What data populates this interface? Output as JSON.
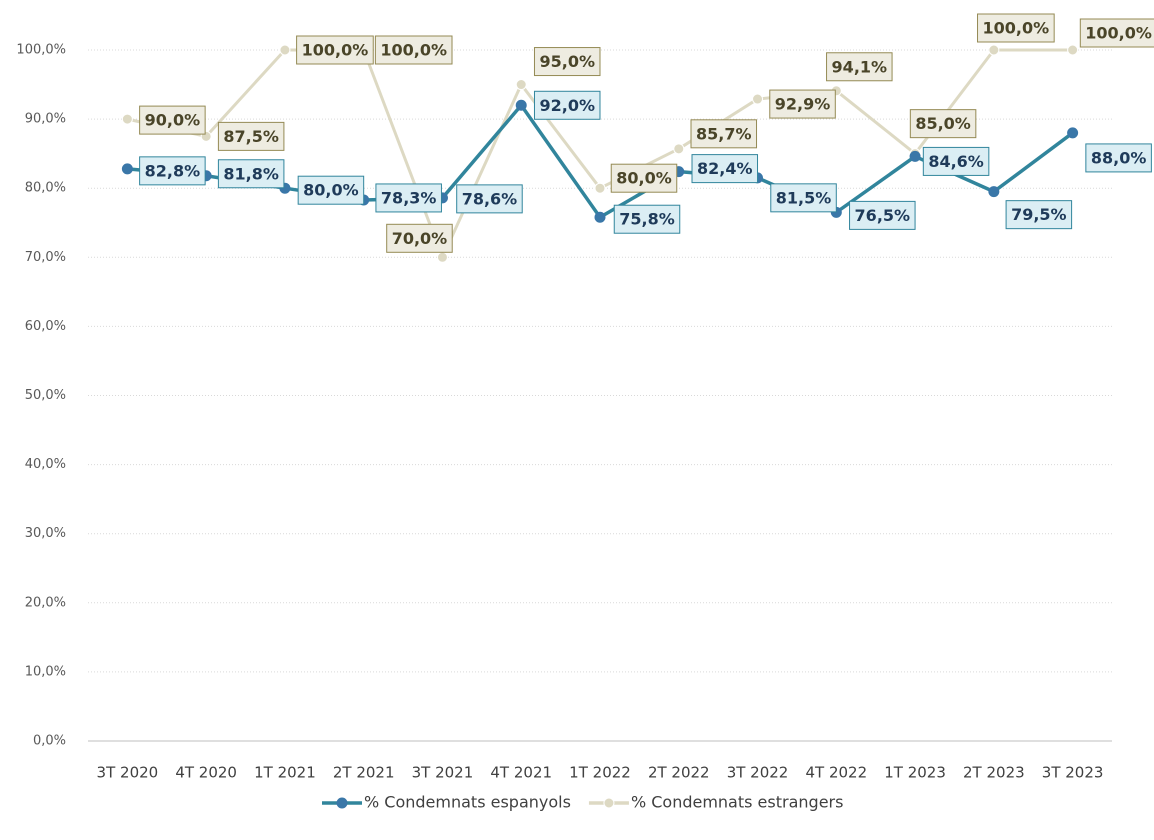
{
  "chart_data": {
    "type": "line",
    "categories": [
      "3T 2020",
      "4T 2020",
      "1T 2021",
      "2T 2021",
      "3T 2021",
      "4T 2021",
      "1T 2022",
      "2T 2022",
      "3T 2022",
      "4T 2022",
      "1T 2023",
      "2T 2023",
      "3T 2023"
    ],
    "series": [
      {
        "name": "% Condemnats espanyols",
        "color": "#31859c",
        "values": [
          82.8,
          81.8,
          80.0,
          78.3,
          78.6,
          92.0,
          75.8,
          82.4,
          81.5,
          76.5,
          84.6,
          79.5,
          88.0
        ],
        "value_labels": [
          "82,8%",
          "81,8%",
          "80,0%",
          "78,3%",
          "78,6%",
          "92,0%",
          "75,8%",
          "82,4%",
          "81,5%",
          "76,5%",
          "84,6%",
          "79,5%",
          "88,0%"
        ]
      },
      {
        "name": "% Condemnats estrangers",
        "color": "#ddd9c3",
        "values": [
          90.0,
          87.5,
          100.0,
          100.0,
          70.0,
          95.0,
          80.0,
          85.7,
          92.9,
          94.1,
          85.0,
          100.0,
          100.0
        ],
        "value_labels": [
          "90,0%",
          "87,5%",
          "100,0%",
          "100,0%",
          "70,0%",
          "95,0%",
          "80,0%",
          "85,7%",
          "92,9%",
          "94,1%",
          "85,0%",
          "100,0%",
          "100,0%"
        ]
      }
    ],
    "ylim": [
      0,
      100
    ],
    "yticks": [
      {
        "value": 0,
        "label": "0,0%"
      },
      {
        "value": 10,
        "label": "10,0%"
      },
      {
        "value": 20,
        "label": "20,0%"
      },
      {
        "value": 30,
        "label": "30,0%"
      },
      {
        "value": 40,
        "label": "40,0%"
      },
      {
        "value": 50,
        "label": "50,0%"
      },
      {
        "value": 60,
        "label": "60,0%"
      },
      {
        "value": 70,
        "label": "70,0%"
      },
      {
        "value": 80,
        "label": "80,0%"
      },
      {
        "value": 90,
        "label": "90,0%"
      },
      {
        "value": 100,
        "label": "100,0%"
      }
    ],
    "grid": true,
    "legend": "bottom"
  }
}
